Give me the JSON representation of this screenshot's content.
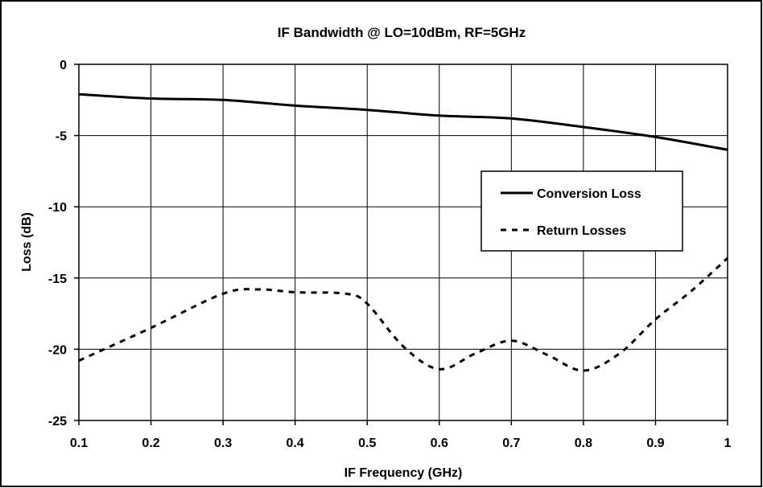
{
  "chart_data": {
    "type": "line",
    "title": "IF Bandwidth @ LO=10dBm, RF=5GHz",
    "xlabel": "IF Frequency (GHz)",
    "ylabel": "Loss (dB)",
    "xlim": [
      0.1,
      1
    ],
    "ylim": [
      -25,
      0
    ],
    "x_ticks": [
      "0.1",
      "0.2",
      "0.3",
      "0.4",
      "0.5",
      "0.6",
      "0.7",
      "0.8",
      "0.9",
      "1"
    ],
    "y_ticks": [
      "0",
      "-5",
      "-10",
      "-15",
      "-20",
      "-25"
    ],
    "grid": true,
    "legend_position": "right",
    "series": [
      {
        "name": "Conversion Loss",
        "style": "solid",
        "color": "#000000",
        "x": [
          0.1,
          0.2,
          0.3,
          0.4,
          0.5,
          0.6,
          0.7,
          0.8,
          0.9,
          1.0
        ],
        "y": [
          -2.1,
          -2.4,
          -2.5,
          -2.9,
          -3.2,
          -3.6,
          -3.8,
          -4.4,
          -5.1,
          -6.0
        ]
      },
      {
        "name": "Return Losses",
        "style": "dashed",
        "color": "#000000",
        "x": [
          0.1,
          0.2,
          0.3,
          0.35,
          0.4,
          0.47,
          0.5,
          0.55,
          0.6,
          0.65,
          0.7,
          0.75,
          0.8,
          0.85,
          0.9,
          0.95,
          1.0
        ],
        "y": [
          -20.8,
          -18.5,
          -16.1,
          -15.8,
          -16.0,
          -16.1,
          -16.8,
          -19.8,
          -21.4,
          -20.3,
          -19.4,
          -20.4,
          -21.5,
          -20.3,
          -17.9,
          -15.9,
          -13.6
        ]
      }
    ]
  }
}
